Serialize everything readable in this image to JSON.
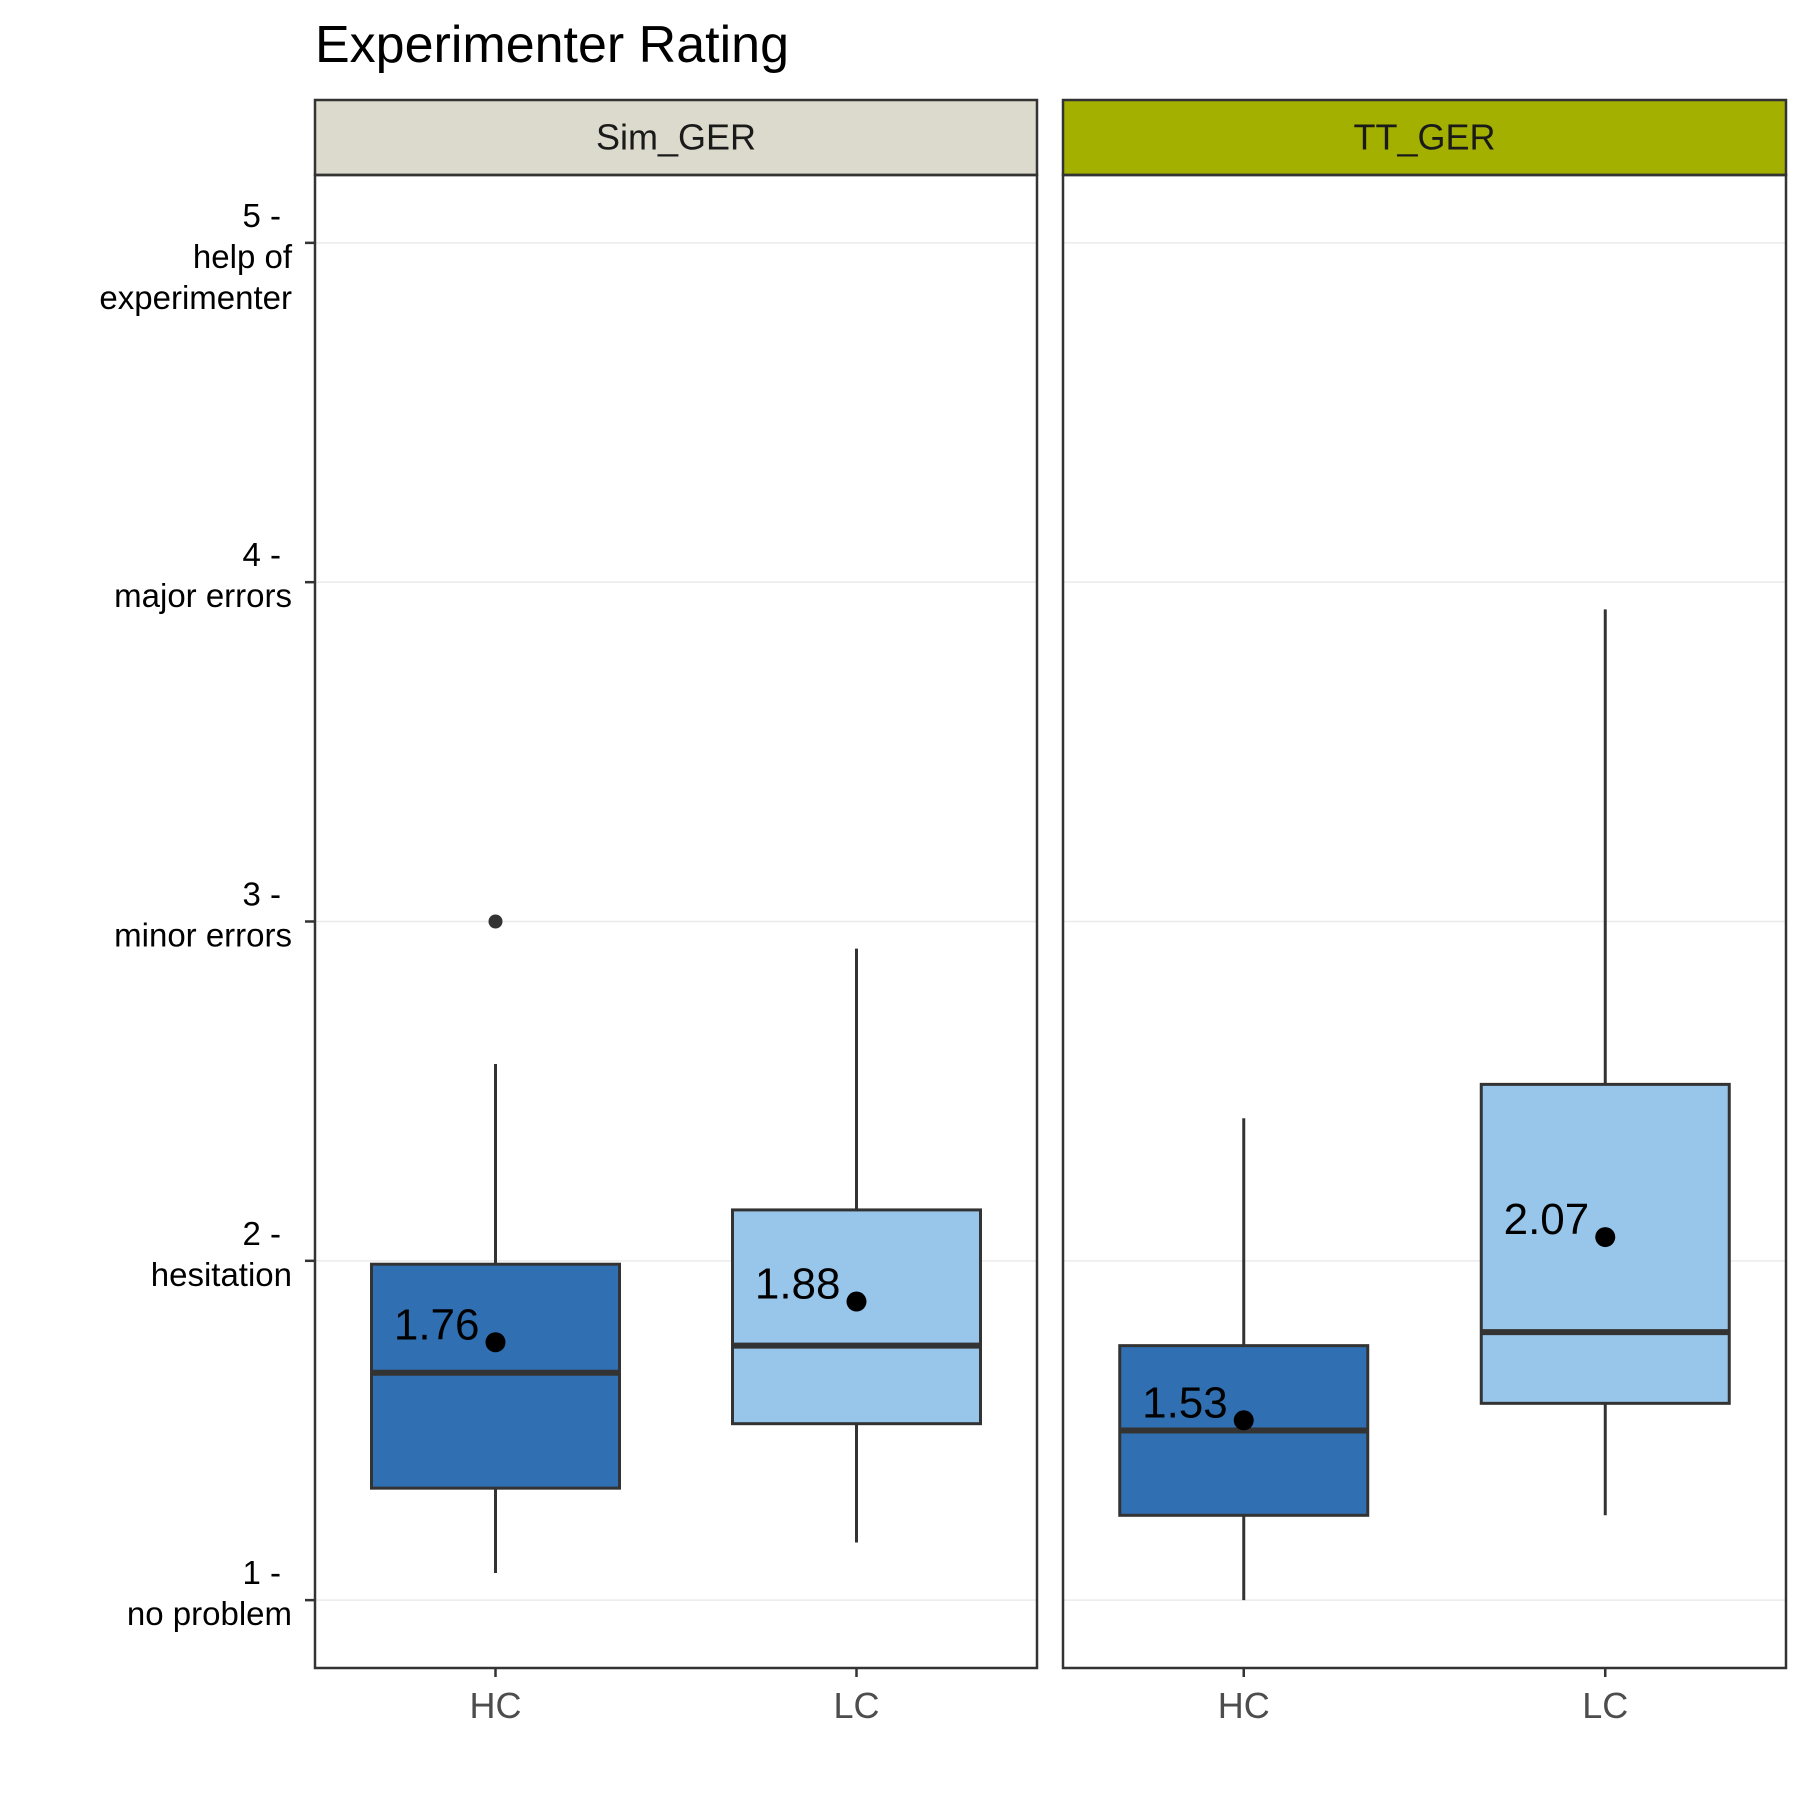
{
  "chart_data": {
    "type": "box",
    "title": "Experimenter Rating",
    "xlabel": "",
    "ylabel": "",
    "ylim": [
      0.8,
      5.2
    ],
    "grid": "major-y",
    "yticks": [
      {
        "value": 1,
        "lines": [
          "1 -",
          "no problem"
        ]
      },
      {
        "value": 2,
        "lines": [
          "2 -",
          "hesitation"
        ]
      },
      {
        "value": 3,
        "lines": [
          "3 -",
          "minor errors"
        ]
      },
      {
        "value": 4,
        "lines": [
          "4 -",
          "major errors"
        ]
      },
      {
        "value": 5,
        "lines": [
          "5 -",
          "help of",
          "experimenter"
        ]
      }
    ],
    "categories": [
      "HC",
      "LC"
    ],
    "colors": {
      "HC": "#3070b2",
      "LC": "#98c5ea"
    },
    "panels": [
      {
        "name": "Sim_GER",
        "strip_color": "#dcdacc",
        "boxes": [
          {
            "category": "HC",
            "lower_whisker": 1.08,
            "q1": 1.33,
            "median": 1.67,
            "q3": 1.99,
            "upper_whisker": 2.58,
            "mean": 1.76,
            "mean_label": "1.76",
            "outliers": [
              3.0
            ]
          },
          {
            "category": "LC",
            "lower_whisker": 1.17,
            "q1": 1.52,
            "median": 1.75,
            "q3": 2.15,
            "upper_whisker": 2.92,
            "mean": 1.88,
            "mean_label": "1.88",
            "outliers": []
          }
        ]
      },
      {
        "name": "TT_GER",
        "strip_color": "#a3b000",
        "boxes": [
          {
            "category": "HC",
            "lower_whisker": 1.0,
            "q1": 1.25,
            "median": 1.5,
            "q3": 1.75,
            "upper_whisker": 2.42,
            "mean": 1.53,
            "mean_label": "1.53",
            "outliers": []
          },
          {
            "category": "LC",
            "lower_whisker": 1.25,
            "q1": 1.58,
            "median": 1.79,
            "q3": 2.52,
            "upper_whisker": 3.92,
            "mean": 2.07,
            "mean_label": "2.07",
            "outliers": []
          }
        ]
      }
    ]
  }
}
